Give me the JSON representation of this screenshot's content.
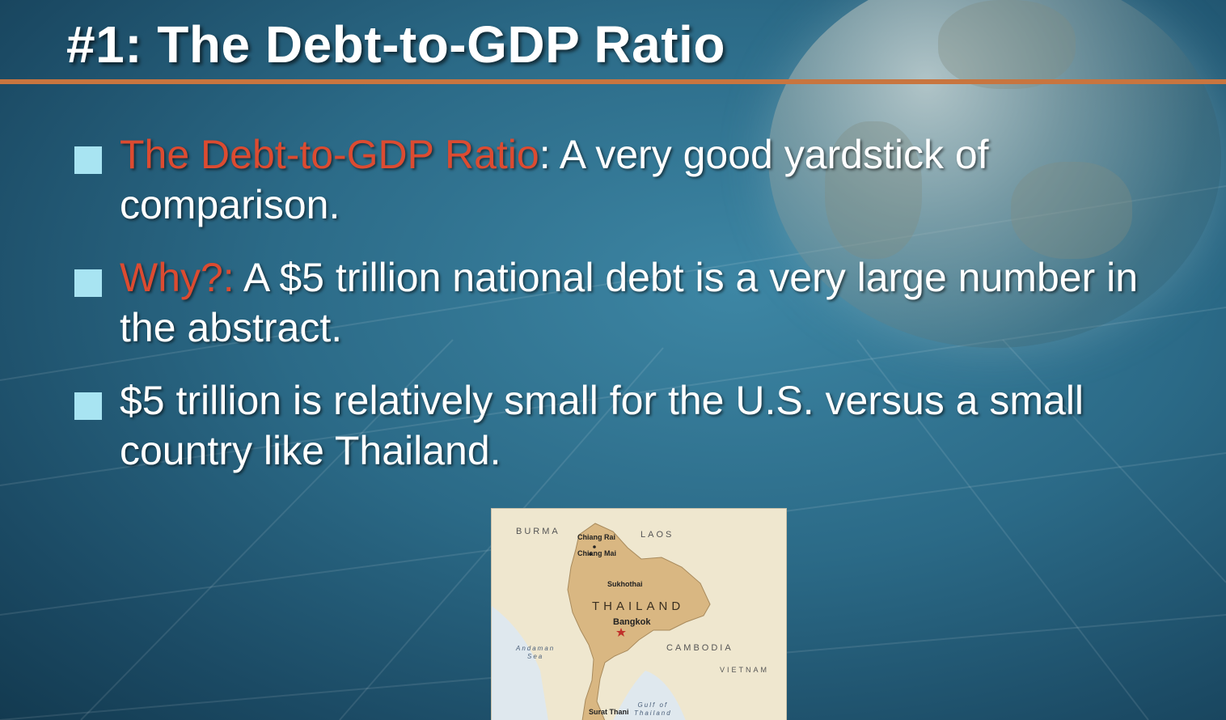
{
  "slide": {
    "title": "#1: The Debt-to-GDP Ratio",
    "bullets": [
      {
        "highlight": "The Debt-to-GDP Ratio",
        "text": ": A very good yardstick of comparison."
      },
      {
        "highlight": "Why?:",
        "text": " A $5 trillion national debt is a very large number in the abstract."
      },
      {
        "highlight": "",
        "text": "$5 trillion is relatively small for the U.S. versus a small country like Thailand."
      }
    ]
  },
  "map": {
    "country_label": "THAILAND",
    "neighbors": {
      "burma": "BURMA",
      "laos": "LAOS",
      "cambodia": "CAMBODIA",
      "vietnam": "VIETNAM"
    },
    "cities": {
      "chiang_rai": "Chiang Rai",
      "chiang_mai": "Chiang Mai",
      "sukhothai": "Sukhothai",
      "bangkok": "Bangkok",
      "surat_thani": "Surat Thani"
    },
    "seas": {
      "andaman_1": "Andaman",
      "andaman_2": "Sea",
      "gulf_1": "Gulf of",
      "gulf_2": "Thailand"
    }
  },
  "colors": {
    "accent": "#dc4b31",
    "bullet_icon": "#a8e4f2",
    "title_rule": "#c8753f",
    "text": "#ffffff",
    "thailand": "#d9b782"
  }
}
